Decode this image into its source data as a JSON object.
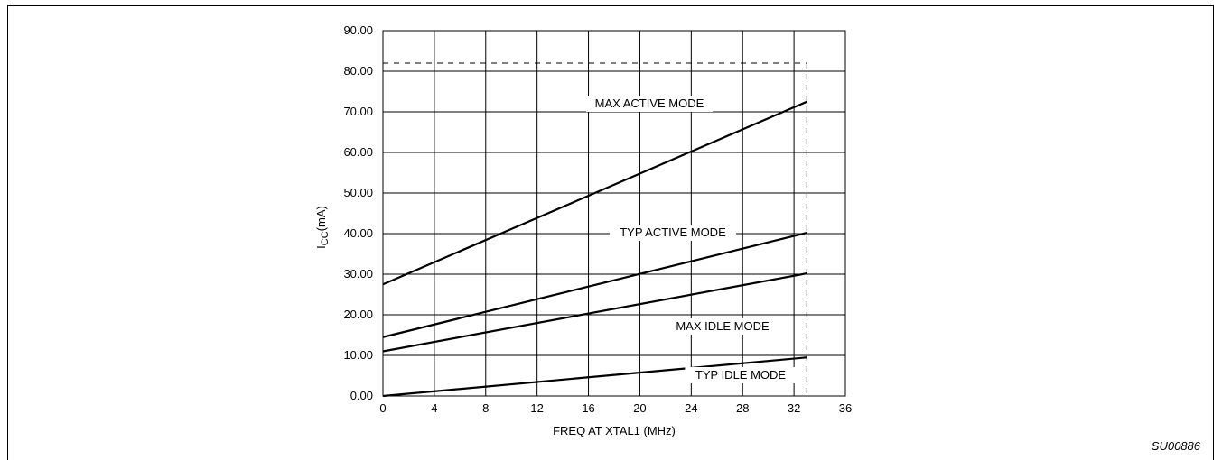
{
  "chart_data": {
    "type": "line",
    "xlabel": "FREQ AT XTAL1 (MHz)",
    "ylabel_main": "I",
    "ylabel_sub": "CC",
    "ylabel_unit": "(mA)",
    "xlim": [
      0,
      36
    ],
    "ylim": [
      0,
      90
    ],
    "x_ticks": [
      "0",
      "4",
      "8",
      "12",
      "16",
      "20",
      "24",
      "28",
      "32",
      "36"
    ],
    "y_ticks": [
      "0.00",
      "10.00",
      "20.00",
      "30.00",
      "40.00",
      "50.00",
      "60.00",
      "70.00",
      "80.00",
      "90.00"
    ],
    "grid": true,
    "limit_lines": {
      "x": 33,
      "y": 82
    },
    "series": [
      {
        "name": "MAX ACTIVE MODE",
        "x": [
          0,
          33
        ],
        "y": [
          27.5,
          72.5
        ]
      },
      {
        "name": "TYP ACTIVE MODE",
        "x": [
          0,
          33
        ],
        "y": [
          14.5,
          40.2
        ]
      },
      {
        "name": "MAX IDLE MODE",
        "x": [
          0,
          33
        ],
        "y": [
          11.0,
          30.2
        ]
      },
      {
        "name": "TYP IDLE MODE",
        "x": [
          0,
          33
        ],
        "y": [
          0.0,
          9.5
        ]
      }
    ]
  },
  "figure_code": "SU00886"
}
